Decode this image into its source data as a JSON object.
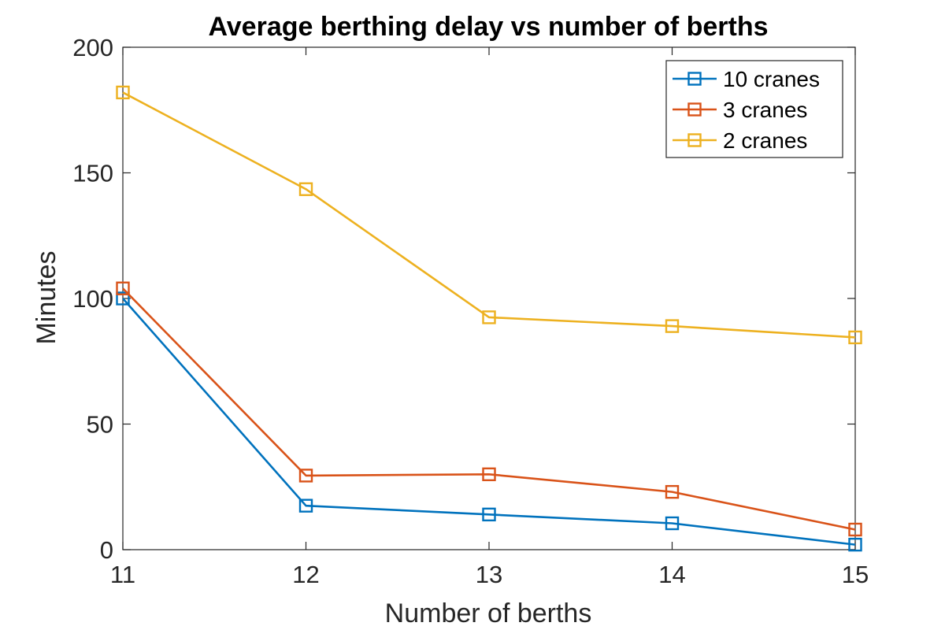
{
  "chart_data": {
    "type": "line",
    "title": "Average berthing delay vs number of berths",
    "xlabel": "Number of berths",
    "ylabel": "Minutes",
    "x": [
      11,
      12,
      13,
      14,
      15
    ],
    "xlim": [
      11,
      15
    ],
    "ylim": [
      0,
      200
    ],
    "xticks": [
      11,
      12,
      13,
      14,
      15
    ],
    "yticks": [
      0,
      50,
      100,
      150,
      200
    ],
    "grid": false,
    "legend_position": "top-right",
    "marker": "square",
    "series": [
      {
        "name": "10 cranes",
        "color": "#0072BD",
        "values": [
          100,
          17.5,
          14,
          10.5,
          2
        ]
      },
      {
        "name": "3 cranes",
        "color": "#D95319",
        "values": [
          104,
          29.5,
          30,
          23,
          8
        ]
      },
      {
        "name": "2 cranes",
        "color": "#EDB120",
        "values": [
          182,
          143.5,
          92.5,
          89,
          84.5
        ]
      }
    ]
  }
}
